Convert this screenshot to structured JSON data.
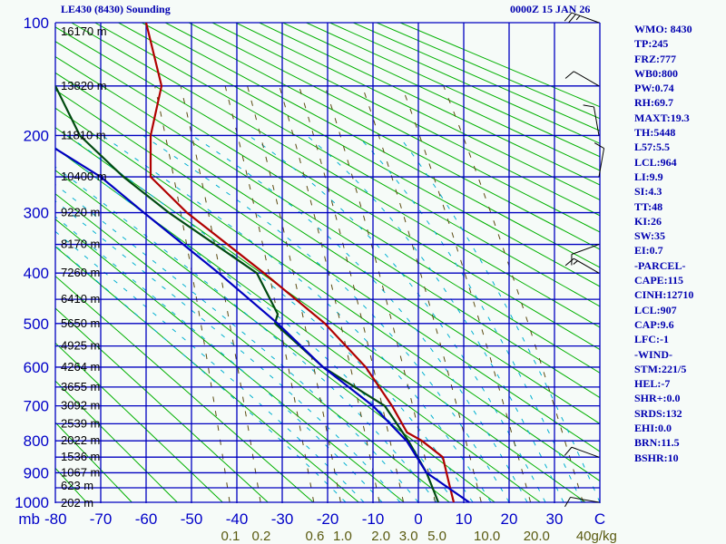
{
  "header": {
    "title": "LE430 (8430) Sounding",
    "datetime": "0000Z 15 JAN 26"
  },
  "stats": [
    "WMO: 8430",
    "TP:245",
    "FRZ:777",
    "WB0:800",
    "PW:0.74",
    "RH:69.7",
    "MAXT:19.3",
    "TH:5448",
    "L57:5.5",
    "LCL:964",
    "LI:9.9",
    "SI:4.3",
    "TT:48",
    "KI:26",
    "SW:35",
    "EI:0.7",
    "-PARCEL-",
    "CAPE:115",
    "CINH:12710",
    "LCL:907",
    "CAP:9.6",
    "LFC:-1",
    "-WIND-",
    "STM:221/5",
    "HEL:-7",
    "SHR+:0.0",
    "SRDS:132",
    "EHI:0.0",
    "BRN:11.5",
    "BSHR:10"
  ],
  "colors": {
    "grid": "#0000c0",
    "temperature": "#b00000",
    "dewpoint": "#004a10",
    "parcel": "#0000c0",
    "dry_adiabat": "#00b000",
    "moist_adiabat": "#00b0d0",
    "mixing_ratio": "#5a4a10",
    "wind": "#000000"
  },
  "chart_data": {
    "type": "line",
    "title": "LE430 (8430) Sounding",
    "diagram": "Stuve (thermodynamic sounding)",
    "pressure_unit_label": "mb",
    "temperature_unit_label": "C",
    "xlim": [
      -80,
      40
    ],
    "ylim_mb": [
      1000,
      100
    ],
    "pressure_labels": [
      "100",
      "200",
      "300",
      "400",
      "500",
      "600",
      "700",
      "800",
      "900",
      "1000"
    ],
    "pressure_label_values": [
      100,
      200,
      300,
      400,
      500,
      600,
      700,
      800,
      900,
      1000
    ],
    "pressure_grid": [
      100,
      150,
      200,
      250,
      300,
      350,
      400,
      450,
      500,
      550,
      600,
      650,
      700,
      750,
      800,
      850,
      900,
      950,
      1000
    ],
    "height_labels": [
      "16170 m",
      "13820 m",
      "11810 m",
      "10400 m",
      "9220 m",
      "8170 m",
      "7260 m",
      "6410 m",
      "5650 m",
      "4925 m",
      "4264 m",
      "3655 m",
      "3092 m",
      "2539 m",
      "2022 m",
      "1536 m",
      "1067 m",
      "623 m",
      "202 m"
    ],
    "temperature_ticks": [
      "-80",
      "-70",
      "-60",
      "-50",
      "-40",
      "-30",
      "-20",
      "-10",
      "0",
      "10",
      "20",
      "30"
    ],
    "temperature_tick_values": [
      -80,
      -70,
      -60,
      -50,
      -40,
      -30,
      -20,
      -10,
      0,
      10,
      20,
      30
    ],
    "mixing_ratio_labels": [
      "0.1",
      "0.2",
      "0.6",
      "1.0",
      "2.0",
      "3.0",
      "5.0",
      "10.0",
      "20.0",
      "40g/kg"
    ],
    "mixing_ratio_values": [
      0.1,
      0.2,
      0.6,
      1.0,
      2.0,
      3.0,
      5.0,
      10.0,
      20.0,
      40
    ],
    "series": [
      {
        "name": "temperature",
        "p": [
          1000,
          950,
          900,
          850,
          800,
          775,
          700,
          600,
          500,
          400,
          300,
          250,
          200,
          150,
          100
        ],
        "t": [
          7.8,
          7.0,
          6.2,
          5.4,
          0.8,
          -2.5,
          -5.8,
          -11.6,
          -20.6,
          -34,
          -51,
          -59,
          -59,
          -56.6,
          -60
        ]
      },
      {
        "name": "dewpoint",
        "p": [
          1000,
          900,
          800,
          700,
          600,
          500,
          480,
          400,
          300,
          250,
          200,
          150
        ],
        "t": [
          4.4,
          1.8,
          -2.2,
          -7.4,
          -21,
          -31.6,
          -31,
          -35.6,
          -55,
          -65,
          -74.6,
          -80
        ]
      },
      {
        "name": "parcel",
        "p": [
          1000,
          900,
          800,
          700,
          600,
          500,
          400,
          300,
          250,
          215
        ],
        "t": [
          11.2,
          1.8,
          -2.6,
          -10,
          -21,
          -31,
          -44,
          -60.5,
          -70,
          -80
        ]
      }
    ],
    "wind_barbs": [
      {
        "p": 100,
        "dir": 290,
        "spd": 15
      },
      {
        "p": 150,
        "dir": 300,
        "spd": 10
      },
      {
        "p": 200,
        "dir": 350,
        "spd": 10
      },
      {
        "p": 250,
        "dir": 10,
        "spd": 10
      },
      {
        "p": 350,
        "dir": 250,
        "spd": 10
      },
      {
        "p": 400,
        "dir": 300,
        "spd": 5
      },
      {
        "p": 850,
        "dir": 290,
        "spd": 10
      },
      {
        "p": 1000,
        "dir": 280,
        "spd": 10
      }
    ]
  }
}
